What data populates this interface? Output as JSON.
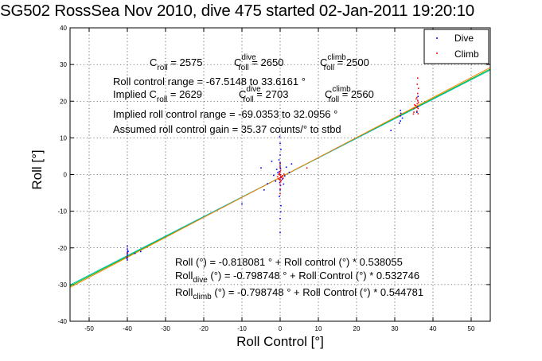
{
  "chart_data": {
    "type": "scatter",
    "title": "SG502 RossSea Nov 2010, dive 475 started 02-Jan-2011 19:20:10",
    "xlabel": "Roll Control [°]",
    "ylabel": "Roll [°]",
    "xlim": [
      -55,
      55
    ],
    "ylim": [
      -40,
      40
    ],
    "x_ticks": [
      -50,
      -40,
      -30,
      -20,
      -10,
      0,
      10,
      20,
      30,
      40,
      50
    ],
    "y_ticks": [
      -40,
      -30,
      -20,
      -10,
      0,
      10,
      20,
      30,
      40
    ],
    "grid": true,
    "legend": {
      "placement": "top-right",
      "entries": [
        "Dive",
        "Climb"
      ]
    },
    "colors": {
      "dive": "#0000ff",
      "climb": "#ff0000",
      "fit": "#00bf00",
      "fit_dive": "#00bfbf",
      "fit_climb": "#ff8000"
    },
    "series": [
      {
        "name": "Dive",
        "points": [
          [
            -40.0,
            -19.5
          ],
          [
            -40.0,
            -20.3
          ],
          [
            -40.0,
            -21.2
          ],
          [
            -40.0,
            -22.0
          ],
          [
            -40.0,
            -22.6
          ],
          [
            -40.0,
            -21.6
          ],
          [
            -39.9,
            -20.8
          ],
          [
            -40.1,
            -22.9
          ],
          [
            -39.8,
            -21.0
          ],
          [
            -40.0,
            -23.3
          ],
          [
            -38.0,
            -21.5
          ],
          [
            -36.5,
            -21.0
          ],
          [
            0.0,
            -15.8
          ],
          [
            0.0,
            -12.0
          ],
          [
            0.2,
            -8.5
          ],
          [
            -0.2,
            -6.0
          ],
          [
            0.0,
            -4.2
          ],
          [
            0.1,
            -3.0
          ],
          [
            -0.1,
            -2.2
          ],
          [
            0.0,
            -1.5
          ],
          [
            0.2,
            -0.8
          ],
          [
            0.0,
            0.0
          ],
          [
            -0.2,
            0.8
          ],
          [
            0.1,
            1.6
          ],
          [
            0.0,
            2.3
          ],
          [
            0.0,
            3.2
          ],
          [
            -0.3,
            4.0
          ],
          [
            0.0,
            5.3
          ],
          [
            0.2,
            6.8
          ],
          [
            0.0,
            8.5
          ],
          [
            0.1,
            -10.2
          ],
          [
            -0.1,
            10.3
          ],
          [
            0.6,
            -1.2
          ],
          [
            -0.6,
            0.5
          ],
          [
            0.9,
            -2.6
          ],
          [
            -0.9,
            1.4
          ],
          [
            1.2,
            -0.4
          ],
          [
            -1.2,
            -1.8
          ],
          [
            1.6,
            2.0
          ],
          [
            -1.7,
            -0.2
          ],
          [
            2.4,
            0.6
          ],
          [
            -3.3,
            -2.5
          ],
          [
            -4.2,
            -4.2
          ],
          [
            -5.0,
            1.8
          ],
          [
            -2.2,
            3.6
          ],
          [
            3.0,
            2.9
          ],
          [
            -10.0,
            -8.0
          ],
          [
            29.0,
            12.0
          ],
          [
            31.5,
            17.5
          ],
          [
            31.5,
            16.0
          ],
          [
            31.5,
            14.6
          ],
          [
            32.0,
            15.4
          ],
          [
            31.6,
            16.7
          ],
          [
            31.2,
            14.0
          ],
          [
            36.0,
            18.5
          ],
          [
            36.0,
            20.2
          ],
          [
            35.8,
            17.0
          ],
          [
            36.1,
            21.3
          ]
        ]
      },
      {
        "name": "Climb",
        "points": [
          [
            -40.1,
            -22.4
          ],
          [
            -40.0,
            -21.4
          ],
          [
            0.0,
            -2.8
          ],
          [
            0.1,
            -2.0
          ],
          [
            -0.1,
            -1.4
          ],
          [
            0.0,
            -0.9
          ],
          [
            0.2,
            -0.5
          ],
          [
            0.0,
            -0.1
          ],
          [
            -0.2,
            0.3
          ],
          [
            0.0,
            0.7
          ],
          [
            0.1,
            1.1
          ],
          [
            0.3,
            -1.6
          ],
          [
            -0.3,
            0.0
          ],
          [
            0.4,
            -0.7
          ],
          [
            -0.4,
            -1.2
          ],
          [
            0.6,
            -0.3
          ],
          [
            0.0,
            -3.9
          ],
          [
            0.0,
            1.9
          ],
          [
            0.0,
            -5.2
          ],
          [
            0.0,
            2.9
          ],
          [
            0.8,
            -1.0
          ],
          [
            -0.7,
            -0.6
          ],
          [
            1.0,
            0.1
          ],
          [
            7.0,
            1.8
          ],
          [
            35.0,
            17.0
          ],
          [
            35.0,
            18.0
          ],
          [
            35.2,
            19.0
          ],
          [
            34.9,
            16.5
          ],
          [
            35.8,
            17.3
          ],
          [
            35.8,
            18.3
          ],
          [
            35.9,
            19.3
          ],
          [
            36.0,
            20.1
          ],
          [
            35.8,
            21.0
          ],
          [
            36.0,
            22.1
          ],
          [
            36.1,
            16.6
          ],
          [
            36.2,
            23.5
          ],
          [
            35.9,
            24.6
          ],
          [
            36.0,
            26.3
          ],
          [
            35.5,
            18.8
          ],
          [
            36.2,
            19.6
          ],
          [
            35.6,
            20.6
          ],
          [
            36.1,
            18.0
          ]
        ]
      }
    ],
    "fit_lines": [
      {
        "series": "Roll",
        "intercept": -0.818081,
        "slope": 0.538055
      },
      {
        "series": "Roll dive",
        "intercept": -0.798748,
        "slope": 0.532746
      },
      {
        "series": "Roll climb",
        "intercept": -0.798748,
        "slope": 0.544781
      }
    ],
    "annotations": {
      "c_roll_line": [
        {
          "base": "C",
          "sub": "roll",
          "sup": "",
          "value": " = 2575"
        },
        {
          "base": "C",
          "sub": "roll",
          "sup": "dive",
          "value": " = 2650"
        },
        {
          "base": "C",
          "sub": "roll",
          "sup": "climb",
          "value": " = 2500"
        }
      ],
      "roll_control_range": "Roll control range = -67.5148 to 33.6161 °",
      "implied_line": [
        {
          "base": "Implied C",
          "sub": "roll",
          "sup": "",
          "value": " = 2629"
        },
        {
          "base": "C",
          "sub": "roll",
          "sup": "dive",
          "value": " = 2703"
        },
        {
          "base": "C",
          "sub": "roll",
          "sup": "climb",
          "value": " = 2560"
        }
      ],
      "implied_range": "Implied roll control range = -69.0353 to 32.0956 °",
      "assumed_gain": "Assumed roll control gain = 35.37 counts/° to stbd",
      "fit_eq_1": "Roll (°) = -0.818081 ° + Roll control (°) * 0.538055",
      "fit_eq_2": {
        "base": "Roll",
        "sub": "dive",
        "rest": " (°) = -0.798748 ° + Roll Control (°) * 0.532746"
      },
      "fit_eq_3": {
        "base": "Roll",
        "sub": "climb",
        "rest": " (°) = -0.798748 ° + Roll Control (°) * 0.544781"
      }
    }
  }
}
